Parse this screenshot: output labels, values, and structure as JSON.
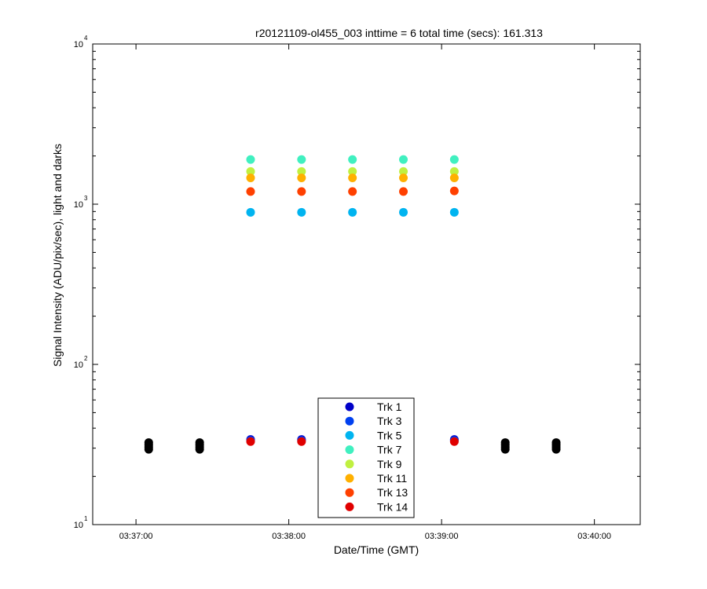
{
  "chart_data": {
    "type": "scatter",
    "title": "r20121109-ol455_003 inttime = 6 total time (secs): 161.313",
    "xlabel": "Date/Time (GMT)",
    "ylabel": "Signal Intensity (ADU/pix/sec), light and darks",
    "x_scale": "time",
    "x_range": [
      "03:36:43",
      "03:40:18"
    ],
    "x_ticks": [
      "03:37:00",
      "03:38:00",
      "03:39:00",
      "03:40:00"
    ],
    "y_scale": "log",
    "ylim": [
      10,
      10000
    ],
    "y_ticks": [
      {
        "base": "10",
        "exp": "1",
        "value": 10
      },
      {
        "base": "10",
        "exp": "2",
        "value": 100
      },
      {
        "base": "10",
        "exp": "3",
        "value": 1000
      },
      {
        "base": "10",
        "exp": "4",
        "value": 10000
      }
    ],
    "grid": false,
    "legend_position": "bottom-center",
    "series": [
      {
        "name": "Trk 1",
        "color": "#0000c8",
        "points": [
          {
            "x": "03:37:45",
            "y": 34
          },
          {
            "x": "03:38:05",
            "y": 34
          },
          {
            "x": "03:39:05",
            "y": 34
          }
        ]
      },
      {
        "name": "Trk 3",
        "color": "#0040f0",
        "points": [
          {
            "x": "03:37:45",
            "y": 33.5
          },
          {
            "x": "03:38:05",
            "y": 33.5
          },
          {
            "x": "03:39:05",
            "y": 33.5
          }
        ]
      },
      {
        "name": "Trk 5",
        "color": "#00b4f0",
        "points": [
          {
            "x": "03:37:45",
            "y": 890
          },
          {
            "x": "03:38:05",
            "y": 890
          },
          {
            "x": "03:38:25",
            "y": 890
          },
          {
            "x": "03:38:45",
            "y": 890
          },
          {
            "x": "03:39:05",
            "y": 890
          }
        ]
      },
      {
        "name": "Trk 7",
        "color": "#40f0c0",
        "points": [
          {
            "x": "03:37:45",
            "y": 1900
          },
          {
            "x": "03:38:05",
            "y": 1900
          },
          {
            "x": "03:38:25",
            "y": 1900
          },
          {
            "x": "03:38:45",
            "y": 1900
          },
          {
            "x": "03:39:05",
            "y": 1900
          }
        ]
      },
      {
        "name": "Trk 9",
        "color": "#c0f040",
        "points": [
          {
            "x": "03:37:45",
            "y": 1600
          },
          {
            "x": "03:38:05",
            "y": 1600
          },
          {
            "x": "03:38:25",
            "y": 1600
          },
          {
            "x": "03:38:45",
            "y": 1600
          },
          {
            "x": "03:39:05",
            "y": 1600
          }
        ]
      },
      {
        "name": "Trk 11",
        "color": "#ffb000",
        "points": [
          {
            "x": "03:37:45",
            "y": 1460
          },
          {
            "x": "03:38:05",
            "y": 1460
          },
          {
            "x": "03:38:25",
            "y": 1460
          },
          {
            "x": "03:38:45",
            "y": 1460
          },
          {
            "x": "03:39:05",
            "y": 1460
          }
        ]
      },
      {
        "name": "Trk 13",
        "color": "#ff4000",
        "points": [
          {
            "x": "03:37:45",
            "y": 1200
          },
          {
            "x": "03:38:05",
            "y": 1200
          },
          {
            "x": "03:38:25",
            "y": 1200
          },
          {
            "x": "03:38:45",
            "y": 1200
          },
          {
            "x": "03:39:05",
            "y": 1210
          }
        ]
      },
      {
        "name": "Trk 14",
        "color": "#e00000",
        "points": [
          {
            "x": "03:37:45",
            "y": 33
          },
          {
            "x": "03:38:05",
            "y": 33
          },
          {
            "x": "03:39:05",
            "y": 33
          }
        ]
      }
    ],
    "dark_points": {
      "color": "#000000",
      "points": [
        {
          "x": "03:37:05",
          "y": 29.5
        },
        {
          "x": "03:37:05",
          "y": 30.5
        },
        {
          "x": "03:37:05",
          "y": 31.5
        },
        {
          "x": "03:37:05",
          "y": 32.5
        },
        {
          "x": "03:37:25",
          "y": 29.5
        },
        {
          "x": "03:37:25",
          "y": 30.5
        },
        {
          "x": "03:37:25",
          "y": 31.5
        },
        {
          "x": "03:37:25",
          "y": 32.5
        },
        {
          "x": "03:39:25",
          "y": 29.5
        },
        {
          "x": "03:39:25",
          "y": 30.5
        },
        {
          "x": "03:39:25",
          "y": 31.5
        },
        {
          "x": "03:39:25",
          "y": 32.5
        },
        {
          "x": "03:39:45",
          "y": 29.5
        },
        {
          "x": "03:39:45",
          "y": 30.5
        },
        {
          "x": "03:39:45",
          "y": 31.5
        },
        {
          "x": "03:39:45",
          "y": 32.5
        }
      ]
    }
  }
}
